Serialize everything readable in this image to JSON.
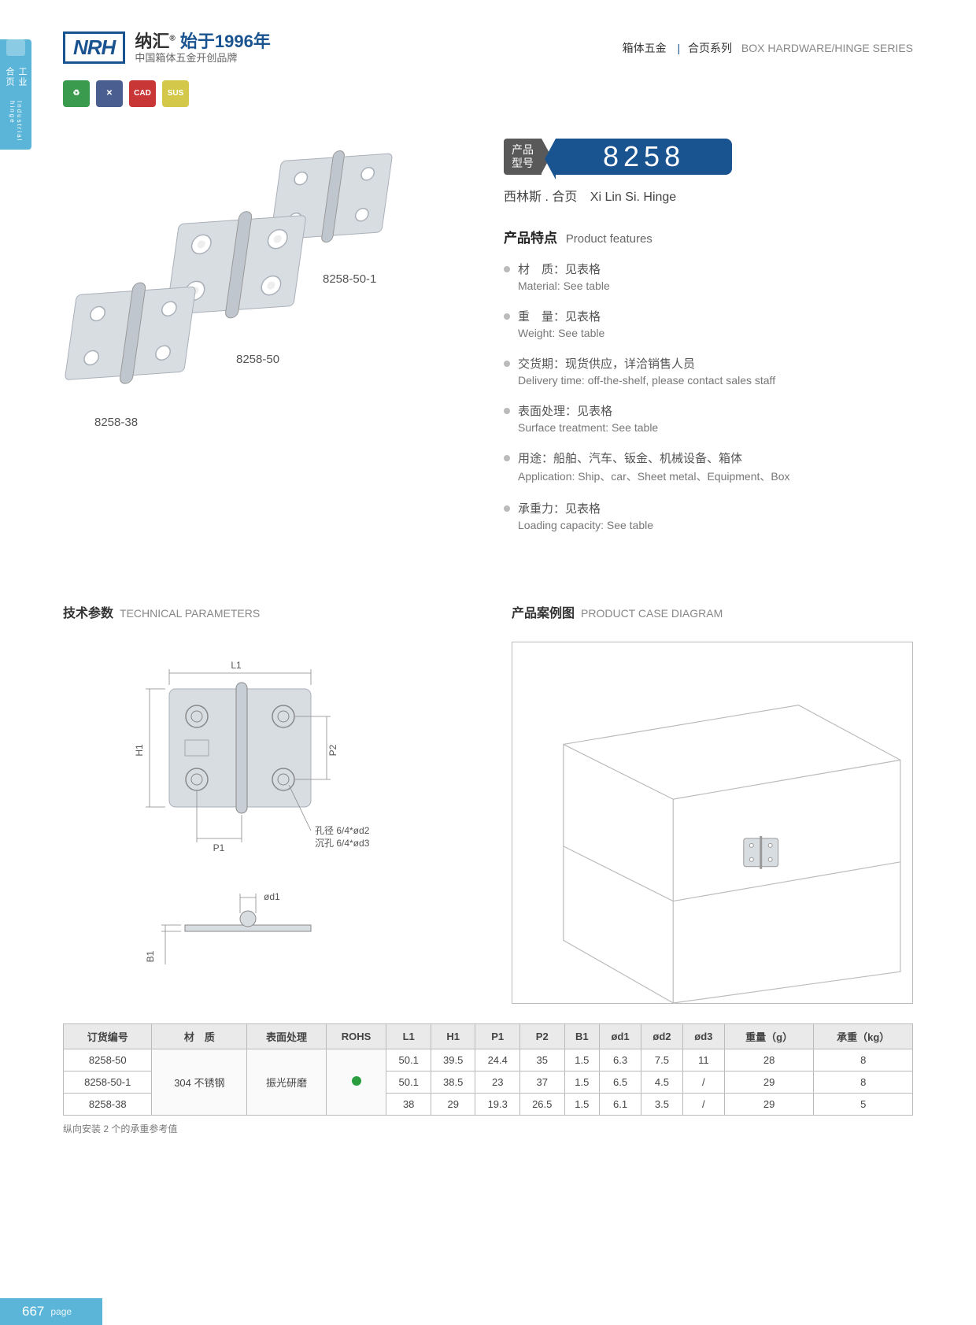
{
  "header": {
    "logo": "NRH",
    "brand_cn": "纳汇",
    "since": "始于1996年",
    "tagline": "中国箱体五金开创品牌",
    "right_cn1": "箱体五金",
    "right_cn2": "合页系列",
    "right_en": "BOX HARDWARE/HINGE SERIES"
  },
  "side": {
    "cn": "工业合页",
    "en": "Industrial hinge"
  },
  "badges": [
    {
      "bg": "#3a9b4e",
      "txt": "♻"
    },
    {
      "bg": "#4a5f8f",
      "txt": "✕"
    },
    {
      "bg": "#c93636",
      "txt": "CAD"
    },
    {
      "bg": "#d4c84a",
      "txt": "SUS"
    }
  ],
  "products": {
    "labels": [
      "8258-38",
      "8258-50",
      "8258-50-1"
    ]
  },
  "model": {
    "label_l1": "产品",
    "label_l2": "型号",
    "number": "8258",
    "subtitle_cn": "西林斯 . 合页",
    "subtitle_en": "Xi Lin Si. Hinge"
  },
  "features": {
    "title_cn": "产品特点",
    "title_en": "Product features",
    "items": [
      {
        "cn": "材　质：见表格",
        "en": "Material: See table"
      },
      {
        "cn": "重　量：见表格",
        "en": "Weight: See table"
      },
      {
        "cn": "交货期：现货供应，详洽销售人员",
        "en": "Delivery time: off-the-shelf, please contact sales staff"
      },
      {
        "cn": "表面处理：见表格",
        "en": "Surface treatment:  See table"
      },
      {
        "cn": "用途：船舶、汽车、钣金、机械设备、箱体",
        "en": "Application: Ship、car、Sheet metal、Equipment、Box"
      },
      {
        "cn": "承重力：见表格",
        "en": "Loading capacity: See table"
      }
    ]
  },
  "tech": {
    "title_cn": "技术参数",
    "title_en": "TECHNICAL PARAMETERS",
    "case_cn": "产品案例图",
    "case_en": "PRODUCT CASE DIAGRAM",
    "dims": {
      "L1": "L1",
      "H1": "H1",
      "P1": "P1",
      "P2": "P2",
      "B1": "B1",
      "od1": "ød1",
      "hole_note1": "孔径 6/4*ød2",
      "hole_note2": "沉孔 6/4*ød3"
    }
  },
  "table": {
    "headers": [
      "订货编号",
      "材　质",
      "表面处理",
      "ROHS",
      "L1",
      "H1",
      "P1",
      "P2",
      "B1",
      "ød1",
      "ød2",
      "ød3",
      "重量（g）",
      "承重（kg）"
    ],
    "material": "304 不锈钢",
    "surface": "振光研磨",
    "rows": [
      {
        "code": "8258-50",
        "L1": "50.1",
        "H1": "39.5",
        "P1": "24.4",
        "P2": "35",
        "B1": "1.5",
        "d1": "6.3",
        "d2": "7.5",
        "d3": "11",
        "wt": "28",
        "load": "8"
      },
      {
        "code": "8258-50-1",
        "L1": "50.1",
        "H1": "38.5",
        "P1": "23",
        "P2": "37",
        "B1": "1.5",
        "d1": "6.5",
        "d2": "4.5",
        "d3": "/",
        "wt": "29",
        "load": "8"
      },
      {
        "code": "8258-38",
        "L1": "38",
        "H1": "29",
        "P1": "19.3",
        "P2": "26.5",
        "B1": "1.5",
        "d1": "6.1",
        "d2": "3.5",
        "d3": "/",
        "wt": "29",
        "load": "5"
      }
    ],
    "note": "纵向安装 2 个的承重参考值"
  },
  "footer": {
    "page": "667",
    "label": "page"
  }
}
